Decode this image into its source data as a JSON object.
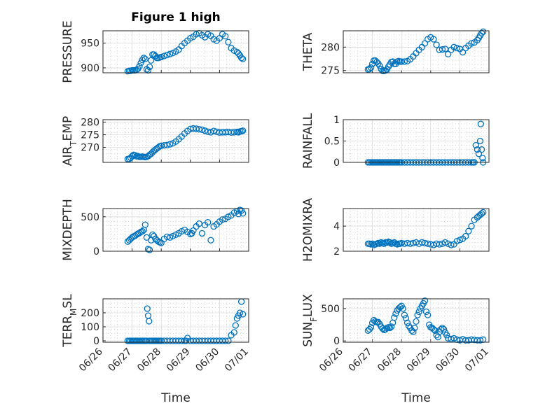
{
  "figure": {
    "title": "Figure 1 high",
    "xlabel": "Time",
    "xtick_labels": [
      "06/26",
      "06/27",
      "06/28",
      "06/29",
      "06/30",
      "07/01"
    ],
    "marker_color": "#0072bd"
  },
  "chart_data": [
    {
      "type": "scatter",
      "id": "pressure",
      "ylabel": "PRESSURE",
      "ylim": [
        890,
        975
      ],
      "yticks": [
        900,
        950
      ],
      "grid": true,
      "x": [
        0.85,
        0.9,
        0.95,
        1.0,
        1.05,
        1.1,
        1.15,
        1.2,
        1.25,
        1.3,
        1.35,
        1.4,
        1.45,
        1.5,
        1.55,
        1.6,
        1.65,
        1.7,
        1.75,
        1.8,
        1.85,
        1.9,
        1.95,
        2.0,
        2.1,
        2.2,
        2.3,
        2.4,
        2.5,
        2.6,
        2.7,
        2.8,
        2.9,
        3.0,
        3.1,
        3.2,
        3.3,
        3.4,
        3.5,
        3.6,
        3.7,
        3.8,
        3.9,
        4.0,
        4.1,
        4.2,
        4.3,
        4.4,
        4.5,
        4.6,
        4.65,
        4.7,
        4.75,
        4.8
      ],
      "values": [
        893,
        894,
        894,
        895,
        895,
        895,
        896,
        898,
        903,
        910,
        916,
        920,
        918,
        897,
        895,
        902,
        915,
        927,
        927,
        924,
        920,
        920,
        921,
        922,
        924,
        926,
        928,
        930,
        933,
        937,
        944,
        950,
        955,
        960,
        963,
        968,
        970,
        966,
        962,
        968,
        965,
        958,
        955,
        960,
        968,
        964,
        952,
        940,
        935,
        932,
        929,
        925,
        920,
        918
      ]
    },
    {
      "type": "scatter",
      "id": "theta",
      "ylabel": "THETA",
      "ylim": [
        274.5,
        283.5
      ],
      "yticks": [
        275,
        280
      ],
      "grid": true,
      "x": [
        0.85,
        0.9,
        0.95,
        1.0,
        1.05,
        1.1,
        1.15,
        1.2,
        1.25,
        1.3,
        1.35,
        1.4,
        1.45,
        1.5,
        1.55,
        1.6,
        1.65,
        1.7,
        1.75,
        1.8,
        1.85,
        1.9,
        1.95,
        2.0,
        2.1,
        2.2,
        2.3,
        2.4,
        2.5,
        2.6,
        2.7,
        2.8,
        2.9,
        3.0,
        3.1,
        3.2,
        3.3,
        3.4,
        3.5,
        3.6,
        3.7,
        3.8,
        3.9,
        4.0,
        4.1,
        4.2,
        4.3,
        4.4,
        4.5,
        4.6,
        4.65,
        4.7,
        4.75,
        4.8
      ],
      "values": [
        275.2,
        275.3,
        275.6,
        276.4,
        277.1,
        277.1,
        276.8,
        276.5,
        276.0,
        275.3,
        274.9,
        274.9,
        275.0,
        275.2,
        275.8,
        276.3,
        276.8,
        276.9,
        276.4,
        276.4,
        276.9,
        277.0,
        276.9,
        276.9,
        276.9,
        277.0,
        277.4,
        278.0,
        278.7,
        279.4,
        280.0,
        280.8,
        281.7,
        282.1,
        281.7,
        280.5,
        279.4,
        279.5,
        279.6,
        278.5,
        279.4,
        280.0,
        279.8,
        279.6,
        278.9,
        279.8,
        280.3,
        280.8,
        281.0,
        281.5,
        282.0,
        282.5,
        283.0,
        283.3
      ]
    },
    {
      "type": "scatter",
      "id": "air-temp",
      "ylabel": "AIR_TEMP",
      "ylim": [
        264,
        281
      ],
      "yticks": [
        270,
        275,
        280
      ],
      "grid": true,
      "x": [
        0.85,
        0.9,
        0.95,
        1.0,
        1.05,
        1.1,
        1.15,
        1.2,
        1.25,
        1.3,
        1.35,
        1.4,
        1.45,
        1.5,
        1.55,
        1.6,
        1.65,
        1.7,
        1.75,
        1.8,
        1.85,
        1.9,
        1.95,
        2.0,
        2.1,
        2.2,
        2.3,
        2.4,
        2.5,
        2.6,
        2.7,
        2.8,
        2.9,
        3.0,
        3.1,
        3.2,
        3.3,
        3.4,
        3.5,
        3.6,
        3.7,
        3.8,
        3.9,
        4.0,
        4.1,
        4.2,
        4.3,
        4.4,
        4.5,
        4.6,
        4.65,
        4.7,
        4.75,
        4.8
      ],
      "values": [
        265.3,
        265.4,
        265.8,
        266.5,
        267.0,
        266.8,
        266.4,
        266.5,
        266.2,
        266.2,
        266.3,
        266.2,
        266.1,
        266.2,
        266.5,
        267.0,
        267.4,
        268.0,
        268.6,
        269.1,
        269.5,
        270.0,
        270.4,
        270.6,
        270.8,
        270.9,
        271.2,
        271.6,
        272.3,
        273.2,
        274.3,
        275.5,
        276.5,
        277.3,
        277.5,
        277.4,
        277.2,
        277.0,
        276.6,
        276.2,
        276.0,
        276.5,
        276.2,
        275.9,
        276.0,
        276.0,
        276.1,
        275.9,
        276.0,
        276.1,
        276.0,
        276.3,
        276.4,
        276.6
      ]
    },
    {
      "type": "scatter",
      "id": "rainfall",
      "ylabel": "RAINFALL",
      "ylim": [
        0,
        1
      ],
      "yticks": [
        0,
        0.5,
        1
      ],
      "grid": true,
      "x": [
        0.85,
        0.9,
        0.95,
        1.0,
        1.05,
        1.1,
        1.15,
        1.2,
        1.25,
        1.3,
        1.35,
        1.4,
        1.45,
        1.5,
        1.55,
        1.6,
        1.65,
        1.7,
        1.75,
        1.8,
        1.85,
        1.9,
        1.95,
        2.0,
        2.1,
        2.2,
        2.3,
        2.4,
        2.5,
        2.6,
        2.7,
        2.8,
        2.9,
        3.0,
        3.1,
        3.2,
        3.3,
        3.4,
        3.5,
        3.6,
        3.7,
        3.8,
        3.9,
        4.0,
        4.1,
        4.2,
        4.3,
        4.4,
        4.45,
        4.5,
        4.55,
        4.6,
        4.65,
        4.7,
        4.72,
        4.75,
        4.78,
        4.8
      ],
      "values": [
        0,
        0,
        0,
        0,
        0,
        0,
        0,
        0,
        0,
        0,
        0,
        0,
        0,
        0,
        0,
        0,
        0,
        0,
        0,
        0,
        0,
        0,
        0,
        0,
        0,
        0,
        0,
        0,
        0,
        0,
        0,
        0,
        0,
        0,
        0,
        0,
        0,
        0,
        0,
        0,
        0,
        0,
        0,
        0,
        0,
        0,
        0,
        0,
        0,
        0,
        0.4,
        0.3,
        0.2,
        0.5,
        0.9,
        0.3,
        0.1,
        0
      ]
    },
    {
      "type": "scatter",
      "id": "mixdepth",
      "ylabel": "MIXDEPTH",
      "ylim": [
        0,
        620
      ],
      "yticks": [
        0,
        500
      ],
      "grid": true,
      "x": [
        0.85,
        0.9,
        0.95,
        1.0,
        1.05,
        1.1,
        1.15,
        1.2,
        1.25,
        1.3,
        1.35,
        1.4,
        1.45,
        1.5,
        1.55,
        1.6,
        1.65,
        1.7,
        1.75,
        1.8,
        1.85,
        1.9,
        1.95,
        2.0,
        2.1,
        2.2,
        2.3,
        2.4,
        2.5,
        2.6,
        2.7,
        2.8,
        2.9,
        3.0,
        3.05,
        3.1,
        3.2,
        3.3,
        3.4,
        3.5,
        3.6,
        3.7,
        3.8,
        3.9,
        4.0,
        4.1,
        4.2,
        4.3,
        4.4,
        4.5,
        4.6,
        4.65,
        4.7,
        4.75,
        4.8
      ],
      "values": [
        140,
        160,
        180,
        200,
        215,
        225,
        240,
        255,
        265,
        280,
        290,
        310,
        385,
        200,
        30,
        20,
        160,
        240,
        220,
        180,
        160,
        140,
        130,
        120,
        180,
        210,
        200,
        220,
        240,
        260,
        290,
        310,
        280,
        250,
        260,
        300,
        360,
        400,
        260,
        380,
        420,
        160,
        360,
        390,
        430,
        460,
        470,
        500,
        520,
        560,
        580,
        540,
        600,
        590,
        550
      ]
    },
    {
      "type": "scatter",
      "id": "h2omixra",
      "ylabel": "H2OMIXRA",
      "ylim": [
        2,
        5.4
      ],
      "yticks": [
        2,
        4
      ],
      "grid": true,
      "x": [
        0.85,
        0.9,
        0.95,
        1.0,
        1.05,
        1.1,
        1.15,
        1.2,
        1.25,
        1.3,
        1.35,
        1.4,
        1.45,
        1.5,
        1.55,
        1.6,
        1.65,
        1.7,
        1.75,
        1.8,
        1.85,
        1.9,
        1.95,
        2.0,
        2.1,
        2.2,
        2.3,
        2.4,
        2.5,
        2.6,
        2.7,
        2.8,
        2.9,
        3.0,
        3.1,
        3.2,
        3.3,
        3.4,
        3.5,
        3.6,
        3.7,
        3.8,
        3.9,
        4.0,
        4.1,
        4.2,
        4.3,
        4.4,
        4.5,
        4.6,
        4.65,
        4.7,
        4.75,
        4.8
      ],
      "values": [
        2.6,
        2.6,
        2.55,
        2.6,
        2.5,
        2.55,
        2.6,
        2.65,
        2.6,
        2.7,
        2.65,
        2.6,
        2.7,
        2.7,
        2.75,
        2.7,
        2.6,
        2.65,
        2.7,
        2.6,
        2.55,
        2.6,
        2.6,
        2.65,
        2.6,
        2.65,
        2.6,
        2.65,
        2.7,
        2.6,
        2.7,
        2.65,
        2.6,
        2.55,
        2.5,
        2.6,
        2.55,
        2.6,
        2.7,
        2.6,
        2.5,
        2.55,
        2.8,
        2.9,
        3.0,
        3.2,
        3.6,
        4.0,
        4.5,
        4.7,
        4.8,
        4.9,
        5.0,
        5.1
      ]
    },
    {
      "type": "scatter",
      "id": "terr-msl",
      "ylabel": "TERR_MSL",
      "ylim": [
        -10,
        300
      ],
      "yticks": [
        0,
        100,
        200
      ],
      "grid": true,
      "x": [
        0.85,
        0.9,
        0.95,
        1.0,
        1.05,
        1.1,
        1.15,
        1.2,
        1.25,
        1.3,
        1.35,
        1.4,
        1.45,
        1.5,
        1.52,
        1.55,
        1.58,
        1.6,
        1.65,
        1.7,
        1.75,
        1.8,
        1.85,
        1.9,
        1.95,
        2.0,
        2.1,
        2.2,
        2.3,
        2.4,
        2.5,
        2.6,
        2.7,
        2.8,
        2.85,
        2.9,
        3.0,
        3.1,
        3.2,
        3.3,
        3.4,
        3.5,
        3.6,
        3.7,
        3.8,
        3.9,
        4.0,
        4.1,
        4.2,
        4.3,
        4.4,
        4.5,
        4.55,
        4.6,
        4.65,
        4.7,
        4.75,
        4.8
      ],
      "values": [
        0,
        0,
        0,
        0,
        0,
        0,
        0,
        0,
        0,
        0,
        0,
        0,
        0,
        0,
        230,
        180,
        140,
        0,
        0,
        0,
        0,
        0,
        0,
        0,
        0,
        0,
        0,
        0,
        0,
        0,
        0,
        0,
        0,
        0,
        0,
        20,
        0,
        0,
        0,
        0,
        0,
        0,
        0,
        0,
        0,
        0,
        0,
        0,
        0,
        0,
        40,
        60,
        110,
        160,
        180,
        200,
        280,
        190
      ]
    },
    {
      "type": "scatter",
      "id": "sun-flux",
      "ylabel": "SUN_FLUX",
      "ylim": [
        -20,
        650
      ],
      "yticks": [
        0,
        500
      ],
      "grid": true,
      "x": [
        0.85,
        0.9,
        0.95,
        1.0,
        1.05,
        1.1,
        1.15,
        1.2,
        1.25,
        1.3,
        1.35,
        1.4,
        1.45,
        1.5,
        1.55,
        1.6,
        1.65,
        1.7,
        1.75,
        1.8,
        1.85,
        1.9,
        1.95,
        2.0,
        2.05,
        2.1,
        2.15,
        2.2,
        2.25,
        2.3,
        2.35,
        2.4,
        2.45,
        2.5,
        2.55,
        2.6,
        2.65,
        2.7,
        2.75,
        2.8,
        2.85,
        2.9,
        2.95,
        3.0,
        3.05,
        3.1,
        3.15,
        3.2,
        3.25,
        3.3,
        3.35,
        3.4,
        3.45,
        3.5,
        3.55,
        3.6,
        3.7,
        3.8,
        3.9,
        4.0,
        4.1,
        4.2,
        4.3,
        4.4,
        4.5,
        4.6,
        4.7,
        4.8
      ],
      "values": [
        160,
        180,
        210,
        280,
        320,
        300,
        290,
        290,
        260,
        220,
        190,
        170,
        180,
        200,
        210,
        200,
        220,
        280,
        360,
        420,
        470,
        500,
        520,
        540,
        500,
        400,
        350,
        280,
        230,
        200,
        160,
        140,
        200,
        300,
        400,
        450,
        500,
        540,
        580,
        620,
        450,
        400,
        250,
        210,
        200,
        180,
        160,
        90,
        60,
        140,
        180,
        200,
        180,
        130,
        90,
        40,
        30,
        40,
        20,
        10,
        25,
        10,
        10,
        20,
        15,
        10,
        10,
        20
      ]
    }
  ]
}
